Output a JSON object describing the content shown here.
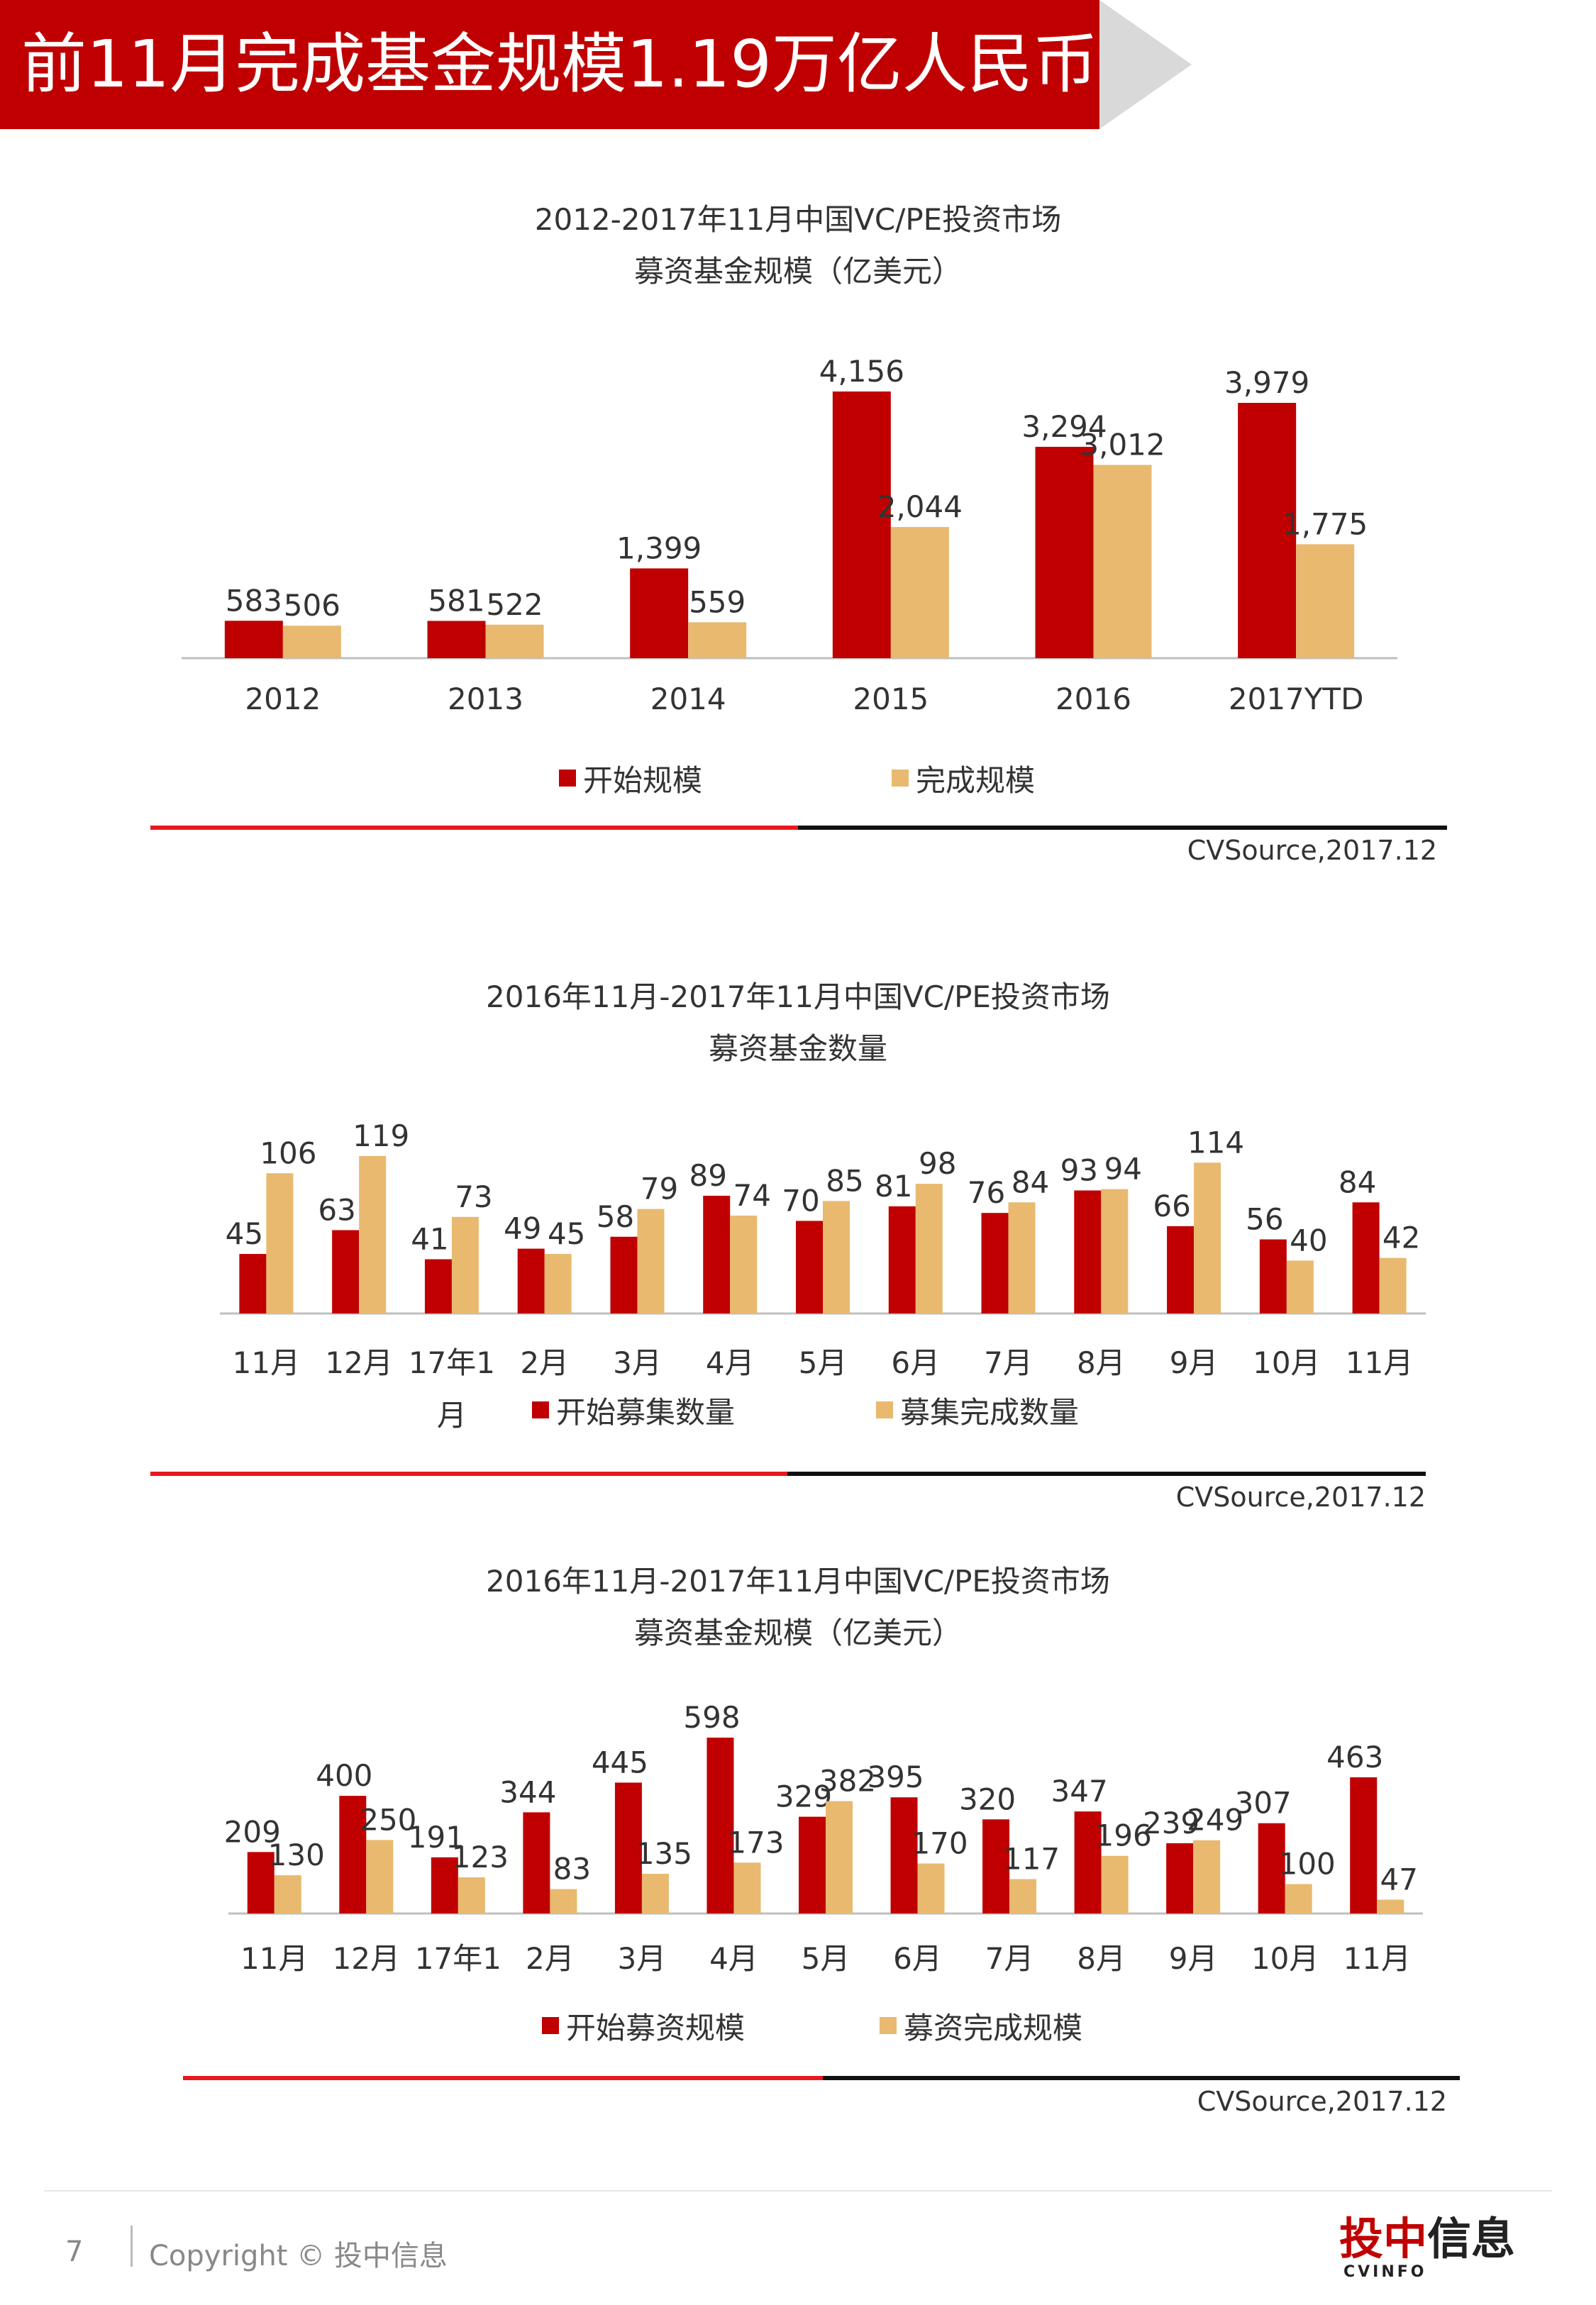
{
  "banner": {
    "title": "前11月完成基金规模1.19万亿人民币"
  },
  "colors": {
    "red": "#c00000",
    "tan": "#e8b96f",
    "banner": "#c00000",
    "arrow": "#d9d9d9"
  },
  "chart_data": [
    {
      "type": "bar",
      "title_line1": "2012-2017年11月中国VC/PE投资市场",
      "title_line2": "募资基金规模（亿美元）",
      "categories": [
        "2012",
        "2013",
        "2014",
        "2015",
        "2016",
        "2017YTD"
      ],
      "series": [
        {
          "name": "开始规模",
          "values": [
            583,
            581,
            1399,
            4156,
            3294,
            3979
          ]
        },
        {
          "name": "完成规模",
          "values": [
            506,
            522,
            559,
            2044,
            3012,
            1775
          ]
        }
      ],
      "value_labels": [
        [
          "583",
          "581",
          "1,399",
          "4,156",
          "3,294",
          "3,979"
        ],
        [
          "506",
          "522",
          "559",
          "2,044",
          "3,012",
          "1,775"
        ]
      ],
      "ylim": [
        0,
        4156
      ],
      "legend": "bottom",
      "source": "CVSource,2017.12"
    },
    {
      "type": "bar",
      "title_line1": "2016年11月-2017年11月中国VC/PE投资市场",
      "title_line2": "募资基金数量",
      "categories": [
        "11月",
        "12月",
        "17年1月",
        "2月",
        "3月",
        "4月",
        "5月",
        "6月",
        "7月",
        "8月",
        "9月",
        "10月",
        "11月"
      ],
      "series": [
        {
          "name": "开始募集数量",
          "values": [
            45,
            63,
            41,
            49,
            58,
            89,
            70,
            81,
            76,
            93,
            66,
            56,
            84
          ]
        },
        {
          "name": "募集完成数量",
          "values": [
            106,
            119,
            73,
            45,
            79,
            74,
            85,
            98,
            84,
            94,
            114,
            40,
            42
          ]
        }
      ],
      "ylim": [
        0,
        119
      ],
      "legend": "bottom",
      "source": "CVSource,2017.12"
    },
    {
      "type": "bar",
      "title_line1": "2016年11月-2017年11月中国VC/PE投资市场",
      "title_line2": "募资基金规模（亿美元）",
      "categories": [
        "11月",
        "12月",
        "17年1",
        "2月",
        "3月",
        "4月",
        "5月",
        "6月",
        "7月",
        "8月",
        "9月",
        "10月",
        "11月"
      ],
      "series": [
        {
          "name": "开始募资规模",
          "values": [
            209,
            400,
            191,
            344,
            445,
            598,
            329,
            395,
            320,
            347,
            239,
            307,
            463
          ]
        },
        {
          "name": "募资完成规模",
          "values": [
            130,
            250,
            123,
            83,
            135,
            173,
            382,
            170,
            117,
            196,
            249,
            100,
            47
          ]
        }
      ],
      "ylim": [
        0,
        598
      ],
      "legend": "bottom",
      "source": "CVSource,2017.12"
    }
  ],
  "footer": {
    "page": "7",
    "copyright": "Copyright © 投中信息"
  },
  "logo": {
    "main_red": "投中",
    "main_dark": "信息",
    "sub": "CVINFO"
  }
}
